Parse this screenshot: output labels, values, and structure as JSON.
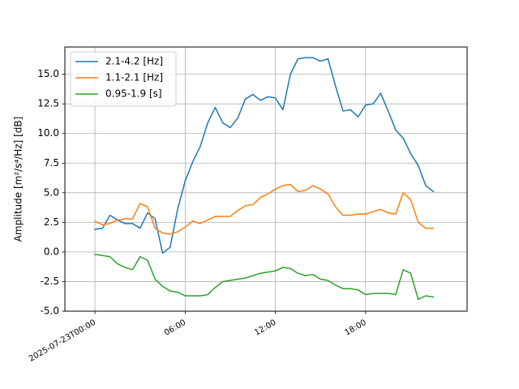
{
  "chart_data": {
    "type": "line",
    "xlabel": "",
    "ylabel": "Amplitude [m²/s⁴/Hz] [dB]",
    "ylim": [
      -5.0,
      17.3
    ],
    "xlim": [
      "2025-07-22T22:00",
      "2025-07-24T00:45"
    ],
    "grid": true,
    "legend_position": "upper-left",
    "x_ticks": [
      {
        "time": "2025-07-23T00:00",
        "label": "2025-07-23T00:00"
      },
      {
        "time": "2025-07-23T06:00",
        "label": "06:00"
      },
      {
        "time": "2025-07-23T12:00",
        "label": "12:00"
      },
      {
        "time": "2025-07-23T18:00",
        "label": "18:00"
      }
    ],
    "y_ticks": [
      "-5.0",
      "-2.5",
      "0.0",
      "2.5",
      "5.0",
      "7.5",
      "10.0",
      "12.5",
      "15.0"
    ],
    "x": [
      "2025-07-23T00:00",
      "2025-07-23T00:30",
      "2025-07-23T01:00",
      "2025-07-23T01:30",
      "2025-07-23T02:00",
      "2025-07-23T02:30",
      "2025-07-23T03:00",
      "2025-07-23T03:30",
      "2025-07-23T04:00",
      "2025-07-23T04:30",
      "2025-07-23T05:00",
      "2025-07-23T05:30",
      "2025-07-23T06:00",
      "2025-07-23T06:30",
      "2025-07-23T07:00",
      "2025-07-23T07:30",
      "2025-07-23T08:00",
      "2025-07-23T08:30",
      "2025-07-23T09:00",
      "2025-07-23T09:30",
      "2025-07-23T10:00",
      "2025-07-23T10:30",
      "2025-07-23T11:00",
      "2025-07-23T11:30",
      "2025-07-23T12:00",
      "2025-07-23T12:30",
      "2025-07-23T13:00",
      "2025-07-23T13:30",
      "2025-07-23T14:00",
      "2025-07-23T14:30",
      "2025-07-23T15:00",
      "2025-07-23T15:30",
      "2025-07-23T16:00",
      "2025-07-23T16:30",
      "2025-07-23T17:00",
      "2025-07-23T17:30",
      "2025-07-23T18:00",
      "2025-07-23T18:30",
      "2025-07-23T19:00",
      "2025-07-23T19:30",
      "2025-07-23T20:00",
      "2025-07-23T20:30",
      "2025-07-23T21:00",
      "2025-07-23T21:30",
      "2025-07-23T22:00",
      "2025-07-23T22:30"
    ],
    "series": [
      {
        "name": "2.1-4.2 [Hz]",
        "color": "#1f77b4",
        "values": [
          1.9,
          2.0,
          3.1,
          2.7,
          2.4,
          2.4,
          2.0,
          3.3,
          2.8,
          -0.1,
          0.4,
          3.6,
          6.0,
          7.6,
          8.9,
          10.9,
          12.2,
          10.9,
          10.5,
          11.3,
          12.9,
          13.3,
          12.8,
          13.1,
          13.0,
          12.0,
          15.0,
          16.3,
          16.4,
          16.4,
          16.1,
          16.3,
          14.0,
          11.9,
          12.0,
          11.4,
          12.4,
          12.5,
          13.4,
          11.9,
          10.3,
          9.6,
          8.3,
          7.3,
          5.6,
          5.1
        ]
      },
      {
        "name": "1.1-2.1 [Hz]",
        "color": "#ff7f0e",
        "values": [
          2.6,
          2.3,
          2.4,
          2.7,
          2.8,
          2.8,
          4.1,
          3.8,
          2.0,
          1.6,
          1.5,
          1.7,
          2.1,
          2.6,
          2.4,
          2.7,
          3.0,
          3.0,
          3.0,
          3.5,
          3.9,
          4.0,
          4.6,
          4.9,
          5.3,
          5.6,
          5.7,
          5.1,
          5.2,
          5.6,
          5.3,
          4.9,
          3.8,
          3.1,
          3.1,
          3.2,
          3.2,
          3.4,
          3.6,
          3.3,
          3.2,
          5.0,
          4.4,
          2.5,
          2.0,
          2.0
        ]
      },
      {
        "name": "0.95-1.9 [s]",
        "color": "#2ca02c",
        "values": [
          -0.2,
          -0.3,
          -0.4,
          -1.0,
          -1.3,
          -1.5,
          -0.4,
          -0.7,
          -2.3,
          -2.9,
          -3.3,
          -3.4,
          -3.7,
          -3.7,
          -3.7,
          -3.6,
          -3.0,
          -2.5,
          -2.4,
          -2.3,
          -2.2,
          -2.0,
          -1.8,
          -1.7,
          -1.6,
          -1.3,
          -1.4,
          -1.8,
          -2.0,
          -1.9,
          -2.3,
          -2.4,
          -2.8,
          -3.1,
          -3.1,
          -3.2,
          -3.6,
          -3.5,
          -3.5,
          -3.5,
          -3.6,
          -1.5,
          -1.8,
          -4.0,
          -3.7,
          -3.8
        ]
      }
    ]
  }
}
